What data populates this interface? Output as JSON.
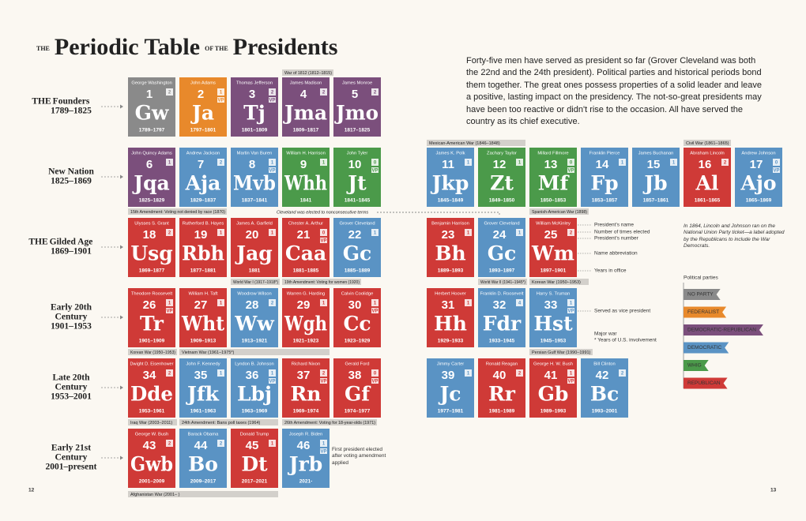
{
  "title": {
    "pre": "THE",
    "main": "Periodic Table",
    "mid": "OF THE",
    "end": "Presidents"
  },
  "intro": "Forty-five men have served as president so far (Grover Cleveland was both the 22nd and the 24th president). Political parties and historical periods bond them together. The great ones possess properties of a solid leader and leave a positive, lasting impact on the presidency. The not-so-great presidents may have been too reactive or didn't rise to the occasion. All have served the country as its chief executive.",
  "eras": [
    {
      "prefix": "THE",
      "lines": [
        "Founders"
      ],
      "years": "1789–1825",
      "left": [
        {
          "name": "George Washington",
          "number": 1,
          "abbr": "Gw",
          "years": "1789–1797",
          "terms": 2,
          "color": "#8a8a8a"
        },
        {
          "name": "John Adams",
          "number": 2,
          "abbr": "Ja",
          "years": "1797–1801",
          "terms": 1,
          "vp": "VP",
          "color": "#e8892b"
        },
        {
          "name": "Thomas Jefferson",
          "number": 3,
          "abbr": "Tj",
          "years": "1801–1809",
          "terms": 2,
          "vp": "VP",
          "color": "#7b4f7c"
        },
        {
          "name": "James Madison",
          "number": 4,
          "abbr": "Jma",
          "years": "1809–1817",
          "terms": 2,
          "color": "#7b4f7c"
        },
        {
          "name": "James Monroe",
          "number": 5,
          "abbr": "Jmo",
          "years": "1817–1825",
          "terms": 2,
          "color": "#7b4f7c"
        }
      ],
      "right": []
    },
    {
      "lines": [
        "New Nation"
      ],
      "years": "1825–1869",
      "left": [
        {
          "name": "John Quincy Adams",
          "number": 6,
          "abbr": "Jqa",
          "years": "1825–1829",
          "terms": 1,
          "color": "#7b4f7c"
        },
        {
          "name": "Andrew Jackson",
          "number": 7,
          "abbr": "Aja",
          "years": "1829–1837",
          "terms": 2,
          "color": "#5a93c4"
        },
        {
          "name": "Martin Van Buren",
          "number": 8,
          "abbr": "Mvb",
          "years": "1837–1841",
          "terms": 1,
          "vp": "VP",
          "color": "#5a93c4"
        },
        {
          "name": "William H. Harrison",
          "number": 9,
          "abbr": "Whh",
          "years": "1841",
          "terms": 1,
          "color": "#4b9a4a"
        },
        {
          "name": "John Tyler",
          "number": 10,
          "abbr": "Jt",
          "years": "1841–1845",
          "terms": 0,
          "vp": "VP",
          "color": "#4b9a4a"
        }
      ],
      "right": [
        {
          "name": "James K. Polk",
          "number": 11,
          "abbr": "Jkp",
          "years": "1845–1849",
          "terms": 1,
          "color": "#5a93c4"
        },
        {
          "name": "Zachary Taylor",
          "number": 12,
          "abbr": "Zt",
          "years": "1849–1850",
          "terms": 1,
          "color": "#4b9a4a"
        },
        {
          "name": "Millard Fillmore",
          "number": 13,
          "abbr": "Mf",
          "years": "1850–1853",
          "terms": 0,
          "vp": "VP",
          "color": "#4b9a4a"
        },
        {
          "name": "Franklin Pierce",
          "number": 14,
          "abbr": "Fp",
          "years": "1853–1857",
          "terms": 1,
          "color": "#5a93c4"
        },
        {
          "name": "James Buchanan",
          "number": 15,
          "abbr": "Jb",
          "years": "1857–1861",
          "terms": 1,
          "color": "#5a93c4"
        },
        {
          "name": "Abraham Lincoln",
          "number": 16,
          "abbr": "Al",
          "years": "1861–1865",
          "terms": 2,
          "color": "#cf3a37"
        },
        {
          "name": "Andrew Johnson",
          "number": 17,
          "abbr": "Ajo",
          "years": "1865–1869",
          "terms": 0,
          "vp": "VP",
          "color": "#5a93c4"
        }
      ]
    },
    {
      "prefix": "THE",
      "lines": [
        "Gilded Age"
      ],
      "years": "1869–1901",
      "left": [
        {
          "name": "Ulysses S. Grant",
          "number": 18,
          "abbr": "Usg",
          "years": "1869–1877",
          "terms": 2,
          "color": "#cf3a37"
        },
        {
          "name": "Rutherford B. Hayes",
          "number": 19,
          "abbr": "Rbh",
          "years": "1877–1881",
          "terms": 1,
          "color": "#cf3a37"
        },
        {
          "name": "James A. Garfield",
          "number": 20,
          "abbr": "Jag",
          "years": "1881",
          "terms": 1,
          "color": "#cf3a37"
        },
        {
          "name": "Chester A. Arthur",
          "number": 21,
          "abbr": "Caa",
          "years": "1881–1885",
          "terms": 0,
          "vp": "VP",
          "color": "#cf3a37"
        },
        {
          "name": "Grover Cleveland",
          "number": 22,
          "abbr": "Gc",
          "years": "1885–1889",
          "terms": 1,
          "color": "#5a93c4"
        }
      ],
      "right": [
        {
          "name": "Benjamin Harrison",
          "number": 23,
          "abbr": "Bh",
          "years": "1889–1893",
          "terms": 1,
          "color": "#cf3a37"
        },
        {
          "name": "Grover Cleveland",
          "number": 24,
          "abbr": "Gc",
          "years": "1893–1897",
          "terms": 1,
          "color": "#5a93c4"
        },
        {
          "name": "William McKinley",
          "number": 25,
          "abbr": "Wm",
          "years": "1897–1901",
          "terms": 2,
          "color": "#cf3a37"
        }
      ]
    },
    {
      "lines": [
        "Early 20th",
        "Century"
      ],
      "years": "1901–1953",
      "left": [
        {
          "name": "Theodore Roosevelt",
          "number": 26,
          "abbr": "Tr",
          "years": "1901–1909",
          "terms": 1,
          "vp": "VP",
          "color": "#cf3a37"
        },
        {
          "name": "William H. Taft",
          "number": 27,
          "abbr": "Wht",
          "years": "1909–1913",
          "terms": 1,
          "color": "#cf3a37"
        },
        {
          "name": "Woodrow Wilson",
          "number": 28,
          "abbr": "Ww",
          "years": "1913–1921",
          "terms": 2,
          "color": "#5a93c4"
        },
        {
          "name": "Warren G. Harding",
          "number": 29,
          "abbr": "Wgh",
          "years": "1921–1923",
          "terms": 1,
          "color": "#cf3a37"
        },
        {
          "name": "Calvin Coolidge",
          "number": 30,
          "abbr": "Cc",
          "years": "1923–1929",
          "terms": 1,
          "vp": "VP",
          "color": "#cf3a37"
        }
      ],
      "right": [
        {
          "name": "Herbert Hoover",
          "number": 31,
          "abbr": "Hh",
          "years": "1929–1933",
          "terms": 1,
          "color": "#cf3a37"
        },
        {
          "name": "Franklin D. Roosevelt",
          "number": 32,
          "abbr": "Fdr",
          "years": "1933–1945",
          "terms": 4,
          "color": "#5a93c4"
        },
        {
          "name": "Harry S. Truman",
          "number": 33,
          "abbr": "Hst",
          "years": "1945–1953",
          "terms": 1,
          "vp": "VP",
          "color": "#5a93c4"
        }
      ]
    },
    {
      "lines": [
        "Late 20th",
        "Century"
      ],
      "years": "1953–2001",
      "left": [
        {
          "name": "Dwight D. Eisenhower",
          "number": 34,
          "abbr": "Dde",
          "years": "1953–1961",
          "terms": 2,
          "color": "#cf3a37"
        },
        {
          "name": "John F. Kennedy",
          "number": 35,
          "abbr": "Jfk",
          "years": "1961–1963",
          "terms": 1,
          "color": "#5a93c4"
        },
        {
          "name": "Lyndon B. Johnson",
          "number": 36,
          "abbr": "Lbj",
          "years": "1963–1969",
          "terms": 1,
          "vp": "VP",
          "color": "#5a93c4"
        },
        {
          "name": "Richard Nixon",
          "number": 37,
          "abbr": "Rn",
          "years": "1969–1974",
          "terms": 2,
          "vp": "VP",
          "color": "#cf3a37"
        },
        {
          "name": "Gerald Ford",
          "number": 38,
          "abbr": "Gf",
          "years": "1974–1977",
          "terms": 0,
          "vp": "VP",
          "color": "#cf3a37"
        }
      ],
      "right": [
        {
          "name": "Jimmy Carter",
          "number": 39,
          "abbr": "Jc",
          "years": "1977–1981",
          "terms": 1,
          "color": "#5a93c4"
        },
        {
          "name": "Ronald Reagan",
          "number": 40,
          "abbr": "Rr",
          "years": "1981–1989",
          "terms": 2,
          "color": "#cf3a37"
        },
        {
          "name": "George H. W. Bush",
          "number": 41,
          "abbr": "Gb",
          "years": "1989–1993",
          "terms": 1,
          "vp": "VP",
          "color": "#cf3a37"
        },
        {
          "name": "Bill Clinton",
          "number": 42,
          "abbr": "Bc",
          "years": "1993–2001",
          "terms": 2,
          "color": "#5a93c4"
        }
      ]
    },
    {
      "lines": [
        "Early 21st",
        "Century"
      ],
      "years": "2001–present",
      "left": [
        {
          "name": "George W. Bush",
          "number": 43,
          "abbr": "Gwb",
          "years": "2001–2009",
          "terms": 2,
          "color": "#cf3a37"
        },
        {
          "name": "Barack Obama",
          "number": 44,
          "abbr": "Bo",
          "years": "2009–2017",
          "terms": 2,
          "color": "#5a93c4"
        },
        {
          "name": "Donald Trump",
          "number": 45,
          "abbr": "Dt",
          "years": "2017–2021",
          "terms": 1,
          "color": "#cf3a37"
        },
        {
          "name": "Joseph R. Biden",
          "number": 46,
          "abbr": "Jrb",
          "years": "2021-",
          "terms": 1,
          "vp": "VP",
          "color": "#5a93c4"
        }
      ],
      "right": []
    }
  ],
  "events": [
    "War of 1812 (1812–1815)",
    "Mexican-American War (1846–1848)",
    "Civil War (1861–1865)",
    "15th Amendment: Voting not denied by race (1870)",
    "Spanish-American War (1898)",
    "World War I (1917–1918*)",
    "19th Amendment: Voting for women (1920)",
    "World War II (1941–1945*)",
    "Korean War (1950–1953)",
    "Korean War (1950–1953)",
    "Vietnam War (1961–1975*)",
    "Persian Gulf War (1990–1991)",
    "Iraq War (2003–2011)",
    "24th Amendment: Bans poll taxes (1964)",
    "26th Amendment: Voting for 18-year-olds (1971)",
    "Afghanistan War (2001– )"
  ],
  "cleveland_note": "Cleveland was elected to nonconsecutive terms",
  "key": [
    "President's name",
    "Number of times elected",
    "President's number",
    "Name abbreviation",
    "Years in office",
    "Served as vice president",
    "Major war",
    "* Years of U.S. involvement"
  ],
  "lincoln_note": "In 1864, Lincoln and Johnson ran on the National Union Party ticket—a label adopted by the Republicans to include the War Democrats.",
  "biden_note": "First president elected after voting amendment applied",
  "parties_title": "Political parties",
  "parties": [
    {
      "name": "NO PARTY",
      "color": "#8a8a8a"
    },
    {
      "name": "FEDERALIST",
      "color": "#e8892b"
    },
    {
      "name": "DEMOCRATIC-REPUBLICAN",
      "color": "#7b4f7c"
    },
    {
      "name": "DEMOCRATIC",
      "color": "#5a93c4"
    },
    {
      "name": "WHIG",
      "color": "#4b9a4a"
    },
    {
      "name": "REPUBLICAN",
      "color": "#cf3a37"
    }
  ],
  "pages": [
    "12",
    "13"
  ]
}
